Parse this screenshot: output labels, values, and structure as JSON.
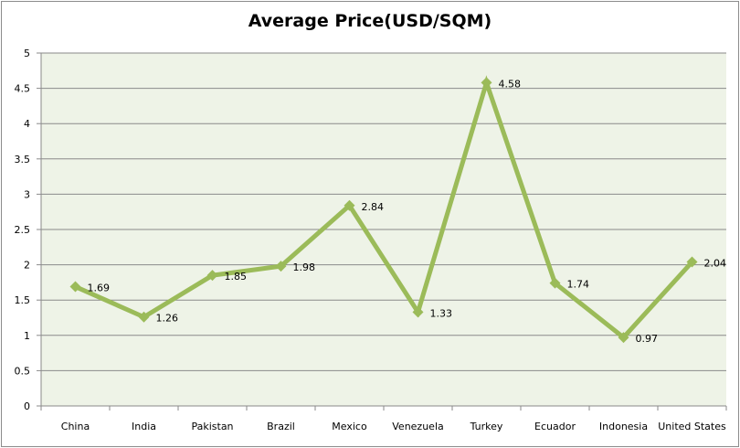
{
  "chart_data": {
    "type": "line",
    "title": "Average Price(USD/SQM)",
    "xlabel": "",
    "ylabel": "",
    "categories": [
      "China",
      "India",
      "Pakistan",
      "Brazil",
      "Mexico",
      "Venezuela",
      "Turkey",
      "Ecuador",
      "Indonesia",
      "United States"
    ],
    "series": [
      {
        "values": [
          1.69,
          1.26,
          1.85,
          1.98,
          2.84,
          1.33,
          4.58,
          1.74,
          0.97,
          2.04
        ],
        "data_labels": [
          "1.69",
          "1.26",
          "1.85",
          "1.98",
          "2.84",
          "1.33",
          "4.58",
          "1.74",
          "0.97",
          "2.04"
        ]
      }
    ],
    "ylim": [
      0,
      5
    ],
    "yticks": [
      "0",
      "0.5",
      "1",
      "1.5",
      "2",
      "2.5",
      "3",
      "3.5",
      "4",
      "4.5",
      "5"
    ],
    "grid": true,
    "legend": "none",
    "colors": {
      "line": "#9bbb59",
      "plot_background": "#eef3e7",
      "gridline": "#8a8a8a"
    }
  }
}
